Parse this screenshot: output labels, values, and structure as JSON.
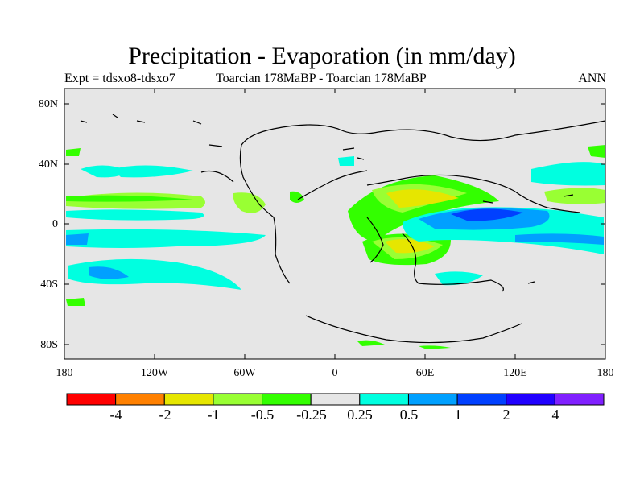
{
  "title": "Precipitation - Evaporation (in mm/day)",
  "subtitle_left": "Expt = tdsxo8-tdsxo7",
  "subtitle_center": "Toarcian 178MaBP - Toarcian 178MaBP",
  "subtitle_right": "ANN",
  "map": {
    "projection": "cylindrical-equidistant",
    "lon_range": [
      -180,
      180
    ],
    "lat_range": [
      -90,
      90
    ],
    "background_color": "#e6e6e6",
    "y_ticks": [
      {
        "lat": 80,
        "label": "80N"
      },
      {
        "lat": 40,
        "label": "40N"
      },
      {
        "lat": 0,
        "label": "0"
      },
      {
        "lat": -40,
        "label": "40S"
      },
      {
        "lat": -80,
        "label": "80S"
      }
    ],
    "x_ticks": [
      {
        "lon": -180,
        "label": "180"
      },
      {
        "lon": -120,
        "label": "120W"
      },
      {
        "lon": -60,
        "label": "60W"
      },
      {
        "lon": 0,
        "label": "0"
      },
      {
        "lon": 60,
        "label": "60E"
      },
      {
        "lon": 120,
        "label": "120E"
      },
      {
        "lon": 180,
        "label": "180"
      }
    ]
  },
  "colorbar": {
    "colors": [
      "#ff0000",
      "#ff8000",
      "#e6e600",
      "#99ff33",
      "#33ff00",
      "#e6e6e6",
      "#00ffe0",
      "#00a0ff",
      "#0040ff",
      "#2000ff",
      "#8020ff"
    ],
    "labels": [
      "-4",
      "-2",
      "-1",
      "-0.5",
      "-0.25",
      "0.25",
      "0.5",
      "1",
      "2",
      "4"
    ]
  }
}
